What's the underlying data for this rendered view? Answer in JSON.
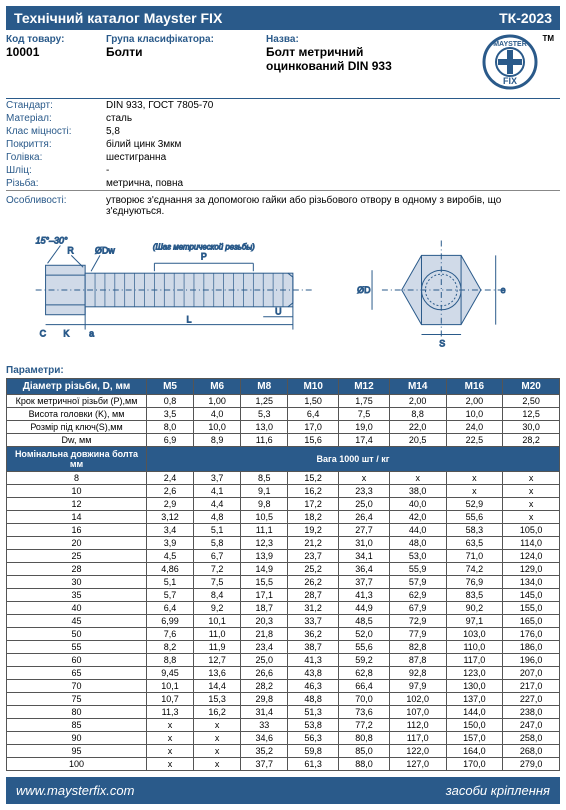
{
  "header": {
    "title_left": "Технічний каталог Mayster FIX",
    "title_right": "ТК-2023"
  },
  "info": {
    "code_label": "Код товару:",
    "code_value": "10001",
    "group_label": "Група класифікатора:",
    "group_value": "Болти",
    "name_label": "Назва:",
    "name_value": "Болт метричний оцинкований DIN 933",
    "logo_top": "MAYSTER",
    "logo_bottom": "FIX",
    "tm": "TM"
  },
  "specs": [
    {
      "label": "Стандарт:",
      "value": "DIN 933, ГОСТ 7805-70"
    },
    {
      "label": "Матеріал:",
      "value": "сталь"
    },
    {
      "label": "Клас міцності:",
      "value": "5,8"
    },
    {
      "label": "Покриття:",
      "value": "білий цинк 3мкм"
    },
    {
      "label": "Голівка:",
      "value": "шестигранна"
    },
    {
      "label": "Шліц:",
      "value": "-"
    },
    {
      "label": "Різьба:",
      "value": "метрична, повна"
    }
  ],
  "feature": {
    "label": "Особливості:",
    "value": "утворює з'єднання за допомогою гайки або різьбового отвору в одному з виробів, що з'єднуються."
  },
  "diagram": {
    "angle_label": "15°–30°",
    "labels": [
      "R",
      "ØDw",
      "K",
      "C",
      "a",
      "L",
      "U",
      "P",
      "S",
      "e",
      "ØD"
    ],
    "thread_label": "(Шаг метрической резьбы)",
    "stroke": "#2a5a8a",
    "fill": "#d0dae8"
  },
  "params_title": "Параметри:",
  "sizes_header": {
    "label": "Діаметр різьби, D, мм",
    "sizes": [
      "M5",
      "M6",
      "M8",
      "M10",
      "M12",
      "M14",
      "M16",
      "M20"
    ]
  },
  "spec_rows": [
    {
      "label": "Крок метричної різьби (Р),мм",
      "vals": [
        "0,8",
        "1,00",
        "1,25",
        "1,50",
        "1,75",
        "2,00",
        "2,00",
        "2,50"
      ]
    },
    {
      "label": "Висота головки (K), мм",
      "vals": [
        "3,5",
        "4,0",
        "5,3",
        "6,4",
        "7,5",
        "8,8",
        "10,0",
        "12,5"
      ]
    },
    {
      "label": "Розмір під ключ(S),мм",
      "vals": [
        "8,0",
        "10,0",
        "13,0",
        "17,0",
        "19,0",
        "22,0",
        "24,0",
        "30,0"
      ]
    },
    {
      "label": "Dw, мм",
      "vals": [
        "6,9",
        "8,9",
        "11,6",
        "15,6",
        "17,4",
        "20,5",
        "22,5",
        "28,2"
      ]
    }
  ],
  "length_header": "Номінальна довжина болта мм",
  "weight_header": "Вага 1000 шт / кг",
  "length_rows": [
    {
      "len": "8",
      "w": [
        "2,4",
        "3,7",
        "8,5",
        "15,2",
        "x",
        "x",
        "x",
        "x"
      ]
    },
    {
      "len": "10",
      "w": [
        "2,6",
        "4,1",
        "9,1",
        "16,2",
        "23,3",
        "38,0",
        "x",
        "x"
      ]
    },
    {
      "len": "12",
      "w": [
        "2,9",
        "4,4",
        "9,8",
        "17,2",
        "25,0",
        "40,0",
        "52,9",
        "x"
      ]
    },
    {
      "len": "14",
      "w": [
        "3,12",
        "4,8",
        "10,5",
        "18,2",
        "26,4",
        "42,0",
        "55,6",
        "x"
      ]
    },
    {
      "len": "16",
      "w": [
        "3,4",
        "5,1",
        "11,1",
        "19,2",
        "27,7",
        "44,0",
        "58,3",
        "105,0"
      ]
    },
    {
      "len": "20",
      "w": [
        "3,9",
        "5,8",
        "12,3",
        "21,2",
        "31,0",
        "48,0",
        "63,5",
        "114,0"
      ]
    },
    {
      "len": "25",
      "w": [
        "4,5",
        "6,7",
        "13,9",
        "23,7",
        "34,1",
        "53,0",
        "71,0",
        "124,0"
      ]
    },
    {
      "len": "28",
      "w": [
        "4,86",
        "7,2",
        "14,9",
        "25,2",
        "36,4",
        "55,9",
        "74,2",
        "129,0"
      ]
    },
    {
      "len": "30",
      "w": [
        "5,1",
        "7,5",
        "15,5",
        "26,2",
        "37,7",
        "57,9",
        "76,9",
        "134,0"
      ]
    },
    {
      "len": "35",
      "w": [
        "5,7",
        "8,4",
        "17,1",
        "28,7",
        "41,3",
        "62,9",
        "83,5",
        "145,0"
      ]
    },
    {
      "len": "40",
      "w": [
        "6,4",
        "9,2",
        "18,7",
        "31,2",
        "44,9",
        "67,9",
        "90,2",
        "155,0"
      ]
    },
    {
      "len": "45",
      "w": [
        "6,99",
        "10,1",
        "20,3",
        "33,7",
        "48,5",
        "72,9",
        "97,1",
        "165,0"
      ]
    },
    {
      "len": "50",
      "w": [
        "7,6",
        "11,0",
        "21,8",
        "36,2",
        "52,0",
        "77,9",
        "103,0",
        "176,0"
      ]
    },
    {
      "len": "55",
      "w": [
        "8,2",
        "11,9",
        "23,4",
        "38,7",
        "55,6",
        "82,8",
        "110,0",
        "186,0"
      ]
    },
    {
      "len": "60",
      "w": [
        "8,8",
        "12,7",
        "25,0",
        "41,3",
        "59,2",
        "87,8",
        "117,0",
        "196,0"
      ]
    },
    {
      "len": "65",
      "w": [
        "9,45",
        "13,6",
        "26,6",
        "43,8",
        "62,8",
        "92,8",
        "123,0",
        "207,0"
      ]
    },
    {
      "len": "70",
      "w": [
        "10,1",
        "14,4",
        "28,2",
        "46,3",
        "66,4",
        "97,9",
        "130,0",
        "217,0"
      ]
    },
    {
      "len": "75",
      "w": [
        "10,7",
        "15,3",
        "29,8",
        "48,8",
        "70,0",
        "102,0",
        "137,0",
        "227,0"
      ]
    },
    {
      "len": "80",
      "w": [
        "11,3",
        "16,2",
        "31,4",
        "51,3",
        "73,6",
        "107,0",
        "144,0",
        "238,0"
      ]
    },
    {
      "len": "85",
      "w": [
        "x",
        "x",
        "33",
        "53,8",
        "77,2",
        "112,0",
        "150,0",
        "247,0"
      ]
    },
    {
      "len": "90",
      "w": [
        "x",
        "x",
        "34,6",
        "56,3",
        "80,8",
        "117,0",
        "157,0",
        "258,0"
      ]
    },
    {
      "len": "95",
      "w": [
        "x",
        "x",
        "35,2",
        "59,8",
        "85,0",
        "122,0",
        "164,0",
        "268,0"
      ]
    },
    {
      "len": "100",
      "w": [
        "x",
        "x",
        "37,7",
        "61,3",
        "88,0",
        "127,0",
        "170,0",
        "279,0"
      ]
    }
  ],
  "footer": {
    "url": "www.maysterfix.com",
    "slogan": "засоби кріплення"
  },
  "colors": {
    "primary": "#2a5a8a",
    "border": "#555555",
    "light": "#d0dae8"
  }
}
